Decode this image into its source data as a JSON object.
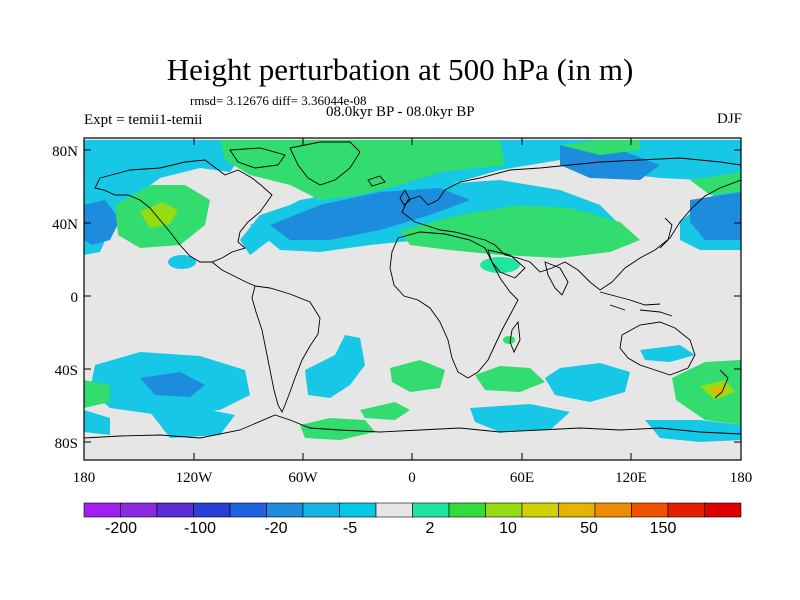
{
  "title": "Height perturbation at 500 hPa (in m)",
  "stats": "rmsd= 3.12676 diff= 3.36044e-08",
  "experiment": "Expt = temii1-temii",
  "period": "08.0kyr BP - 08.0kyr BP",
  "season": "DJF",
  "map": {
    "lat_ticks": [
      "80N",
      "40N",
      "0",
      "40S",
      "80S"
    ],
    "lon_ticks": [
      "180",
      "120W",
      "60W",
      "0",
      "60E",
      "120E",
      "180"
    ],
    "background_color": "#e6e6e6"
  },
  "colorbar": {
    "colors": [
      "#a020f0",
      "#8a2be2",
      "#5a2ed4",
      "#2a3ed8",
      "#1e64e0",
      "#1e8cdc",
      "#16b4e6",
      "#00c8e6",
      "#e6e6e6",
      "#1ee6a0",
      "#32dc3c",
      "#96dc14",
      "#cdd200",
      "#e6b400",
      "#ee8c00",
      "#f05000",
      "#e61e00",
      "#dc0000"
    ],
    "labels": [
      "-200",
      "-100",
      "-20",
      "-5",
      "2",
      "10",
      "50",
      "150"
    ]
  }
}
